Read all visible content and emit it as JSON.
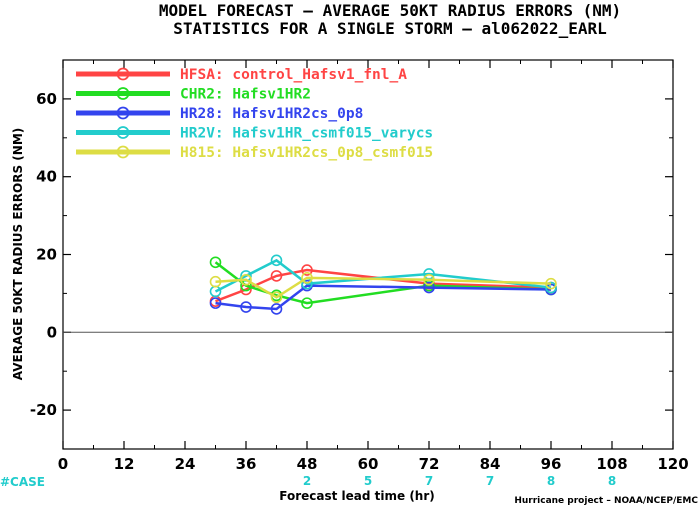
{
  "chart_data": {
    "type": "line",
    "title": "MODEL FORECAST – AVERAGE 50KT RADIUS ERRORS (NM)",
    "subtitle": "STATISTICS FOR A SINGLE STORM – al062022_EARL",
    "xlabel": "Forecast lead time (hr)",
    "ylabel": "AVERAGE 50KT RADIUS ERRORS (NM)",
    "xlim": [
      0,
      120
    ],
    "ylim": [
      -30,
      70
    ],
    "xticks": [
      0,
      12,
      24,
      36,
      48,
      60,
      72,
      84,
      96,
      108,
      120
    ],
    "yticks": [
      -20,
      0,
      20,
      40,
      60
    ],
    "grid": false,
    "legend_position": "top-left",
    "zero_line": true,
    "credit": "Hurricane project – NOAA/NCEP/EMC",
    "case_label": "#CASE",
    "cases": [
      {
        "x": 48,
        "n": "2"
      },
      {
        "x": 60,
        "n": "5"
      },
      {
        "x": 72,
        "n": "7"
      },
      {
        "x": 84,
        "n": "7"
      },
      {
        "x": 96,
        "n": "8"
      },
      {
        "x": 108,
        "n": "8"
      }
    ],
    "series": [
      {
        "name": "HFSA: control_Hafsv1_fnl_A",
        "color": "#ff4444",
        "x": [
          30,
          36,
          42,
          48,
          72,
          96
        ],
        "y": [
          8,
          11,
          14.5,
          16,
          12.5,
          11.5
        ]
      },
      {
        "name": "CHR2: Hafsv1HR2",
        "color": "#22dd22",
        "x": [
          30,
          36,
          42,
          48,
          72,
          96
        ],
        "y": [
          18,
          12,
          9.5,
          7.5,
          12,
          11
        ]
      },
      {
        "name": "HR28: Hafsv1HR2cs_0p8",
        "color": "#3344ee",
        "x": [
          30,
          36,
          42,
          48,
          72,
          96
        ],
        "y": [
          7.5,
          6.5,
          6,
          12,
          11.5,
          11
        ]
      },
      {
        "name": "HR2V: Hafsv1HR_csmf015_varycs",
        "color": "#22cccc",
        "x": [
          30,
          36,
          42,
          48,
          72,
          96
        ],
        "y": [
          10.5,
          14.5,
          18.5,
          12.5,
          15,
          11.5
        ]
      },
      {
        "name": "H815: Hafsv1HR2cs_0p8_csmf015",
        "color": "#dddd44",
        "x": [
          30,
          36,
          42,
          48,
          72,
          96
        ],
        "y": [
          13,
          13.5,
          9,
          14,
          13.5,
          12.5
        ]
      }
    ],
    "colors": {
      "case_color": "#22cccc",
      "zero_line": "#555555",
      "axis": "#000000"
    }
  }
}
